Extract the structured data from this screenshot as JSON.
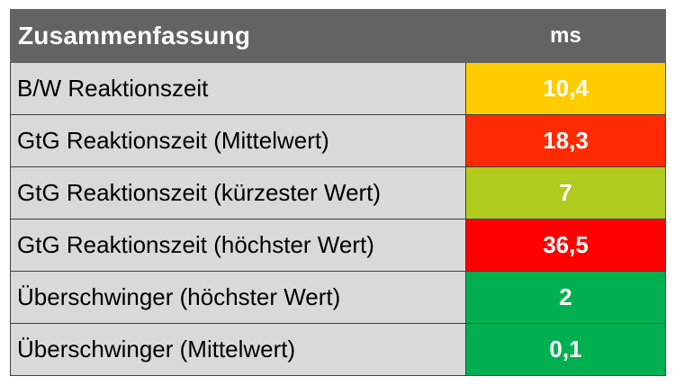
{
  "table": {
    "title": "Zusammenfassung",
    "unit": "ms",
    "header_bg": "#636363",
    "label_bg": "#d9d9d9",
    "rows": [
      {
        "label": "B/W Reaktionszeit",
        "value": "10,4",
        "color": "#ffcc00"
      },
      {
        "label": "GtG Reaktionszeit (Mittelwert)",
        "value": "18,3",
        "color": "#ff2a00"
      },
      {
        "label": "GtG Reaktionszeit (kürzester Wert)",
        "value": "7",
        "color": "#b1cb1e"
      },
      {
        "label": "GtG Reaktionszeit (höchster Wert)",
        "value": "36,5",
        "color": "#ff0000"
      },
      {
        "label": "Überschwinger (höchster Wert)",
        "value": "2",
        "color": "#00b050"
      },
      {
        "label": "Überschwinger (Mittelwert)",
        "value": "0,1",
        "color": "#00b050"
      }
    ]
  }
}
